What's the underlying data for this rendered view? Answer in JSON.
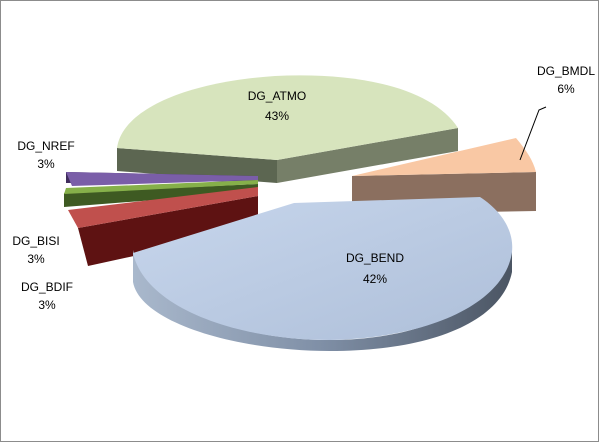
{
  "chart_data": {
    "type": "pie",
    "style": "3d-exploded",
    "legend": "none",
    "slices": [
      {
        "name": "DG_BMDL",
        "percent_label": "6%",
        "value": 6,
        "color": "#f9c8a4"
      },
      {
        "name": "DG_BEND",
        "percent_label": "42%",
        "value": 42,
        "color": "#b3c8e4"
      },
      {
        "name": "DG_BDIF",
        "percent_label": "3%",
        "value": 3,
        "color": "#c0504d"
      },
      {
        "name": "DG_BISI",
        "percent_label": "3%",
        "value": 3,
        "color": "#86b04a"
      },
      {
        "name": "DG_NREF",
        "percent_label": "3%",
        "value": 3,
        "color": "#7a5ea8"
      },
      {
        "name": "DG_ATMO",
        "percent_label": "43%",
        "value": 43,
        "color": "#d7e4bd"
      }
    ]
  }
}
